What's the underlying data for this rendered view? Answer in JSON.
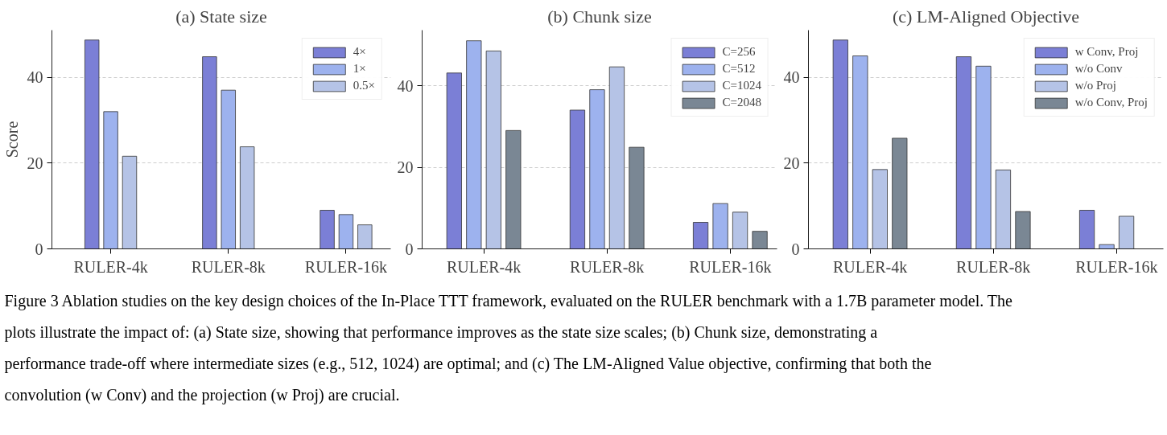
{
  "chart_data": [
    {
      "type": "bar",
      "title": "(a) State size",
      "ylabel": "Score",
      "categories": [
        "RULER-4k",
        "RULER-8k",
        "RULER-16k"
      ],
      "series": [
        {
          "name": "4×",
          "color": "#7b7fd6",
          "values": [
            48.7,
            44.8,
            9.0
          ]
        },
        {
          "name": "1×",
          "color": "#9db2ee",
          "values": [
            32.0,
            37.0,
            8.0
          ]
        },
        {
          "name": "0.5×",
          "color": "#b5c3e6",
          "values": [
            21.6,
            23.8,
            5.6
          ]
        }
      ],
      "ylim": [
        0,
        51
      ],
      "yticks": [
        0,
        20,
        40
      ],
      "grid": "y",
      "legend": "top right"
    },
    {
      "type": "bar",
      "title": "(b) Chunk size",
      "categories": [
        "RULER-4k",
        "RULER-8k",
        "RULER-16k"
      ],
      "series": [
        {
          "name": "C=256",
          "color": "#7b7fd6",
          "values": [
            43.1,
            34.0,
            6.5
          ]
        },
        {
          "name": "C=512",
          "color": "#9db2ee",
          "values": [
            51.0,
            39.0,
            11.1
          ]
        },
        {
          "name": "C=1024",
          "color": "#b5c3e6",
          "values": [
            48.5,
            44.6,
            9.0
          ]
        },
        {
          "name": "C=2048",
          "color": "#7a8794",
          "values": [
            29.0,
            24.9,
            4.3
          ]
        }
      ],
      "ylim": [
        0,
        53.6
      ],
      "yticks": [
        0,
        20,
        40
      ],
      "grid": "y",
      "legend": "top right"
    },
    {
      "type": "bar",
      "title": "(c) LM-Aligned Objective",
      "categories": [
        "RULER-4k",
        "RULER-8k",
        "RULER-16k"
      ],
      "series": [
        {
          "name": "w Conv, Proj",
          "color": "#7b7fd6",
          "values": [
            48.7,
            44.8,
            9.0
          ]
        },
        {
          "name": "w/o Conv",
          "color": "#9db2ee",
          "values": [
            45.0,
            42.6,
            1.0
          ]
        },
        {
          "name": "w/o Proj",
          "color": "#b5c3e6",
          "values": [
            18.5,
            18.4,
            7.6
          ]
        },
        {
          "name": "w/o Conv, Proj",
          "color": "#7a8794",
          "values": [
            25.8,
            8.7,
            null
          ]
        }
      ],
      "ylim": [
        0,
        51
      ],
      "yticks": [
        0,
        20,
        40
      ],
      "grid": "y",
      "legend": "top right",
      "annotations": [
        "Figure 3  Ablation studies on the key design choices of the In-Place TTT framework, evaluated on the RULER benchmark with a 1.7B parameter model. The plots illustrate the impact of: (a) State size, showing that performance improves as the state size scales; (b) Chunk size, demonstrating a performance trade-off where intermediate sizes (e.g., 512, 1024) are optimal; and (c) The LM-Aligned Value objective, confirming that both the convolution (w Conv) and the projection (w Proj) are crucial."
      ]
    }
  ]
}
